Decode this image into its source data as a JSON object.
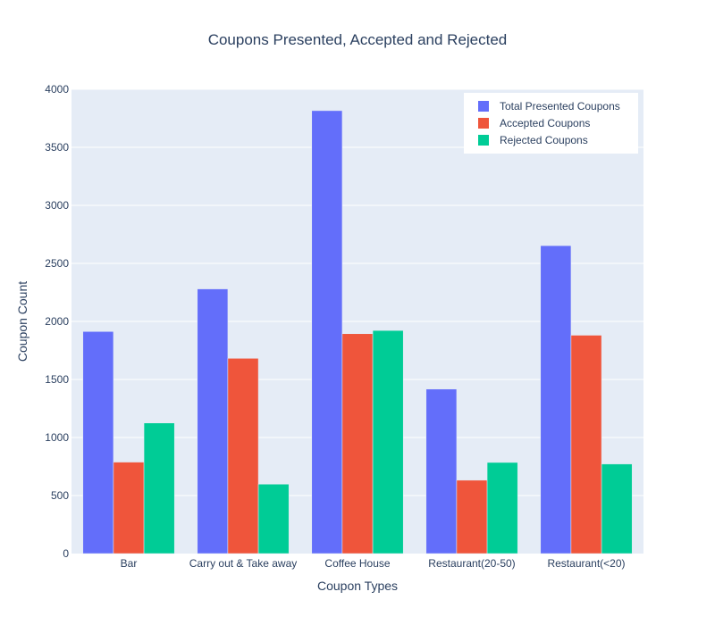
{
  "chart_data": {
    "type": "bar",
    "title": "Coupons Presented, Accepted and Rejected",
    "xlabel": "Coupon Types",
    "ylabel": "Coupon Count",
    "categories": [
      "Bar",
      "Carry out & Take away",
      "Coffee House",
      "Restaurant(20-50)",
      "Restaurant(<20)"
    ],
    "series": [
      {
        "name": "Total Presented Coupons",
        "values": [
          1913,
          2280,
          3816,
          1417,
          2653
        ],
        "color": "#636efa"
      },
      {
        "name": "Accepted Coupons",
        "values": [
          788,
          1682,
          1894,
          632,
          1881
        ],
        "color": "#ef553b"
      },
      {
        "name": "Rejected Coupons",
        "values": [
          1125,
          598,
          1922,
          785,
          772
        ],
        "color": "#00cc96"
      }
    ],
    "ylim": [
      0,
      4000
    ],
    "yticks": [
      0,
      500,
      1000,
      1500,
      2000,
      2500,
      3000,
      3500,
      4000
    ],
    "grid": true,
    "legend_position": "top-right"
  }
}
